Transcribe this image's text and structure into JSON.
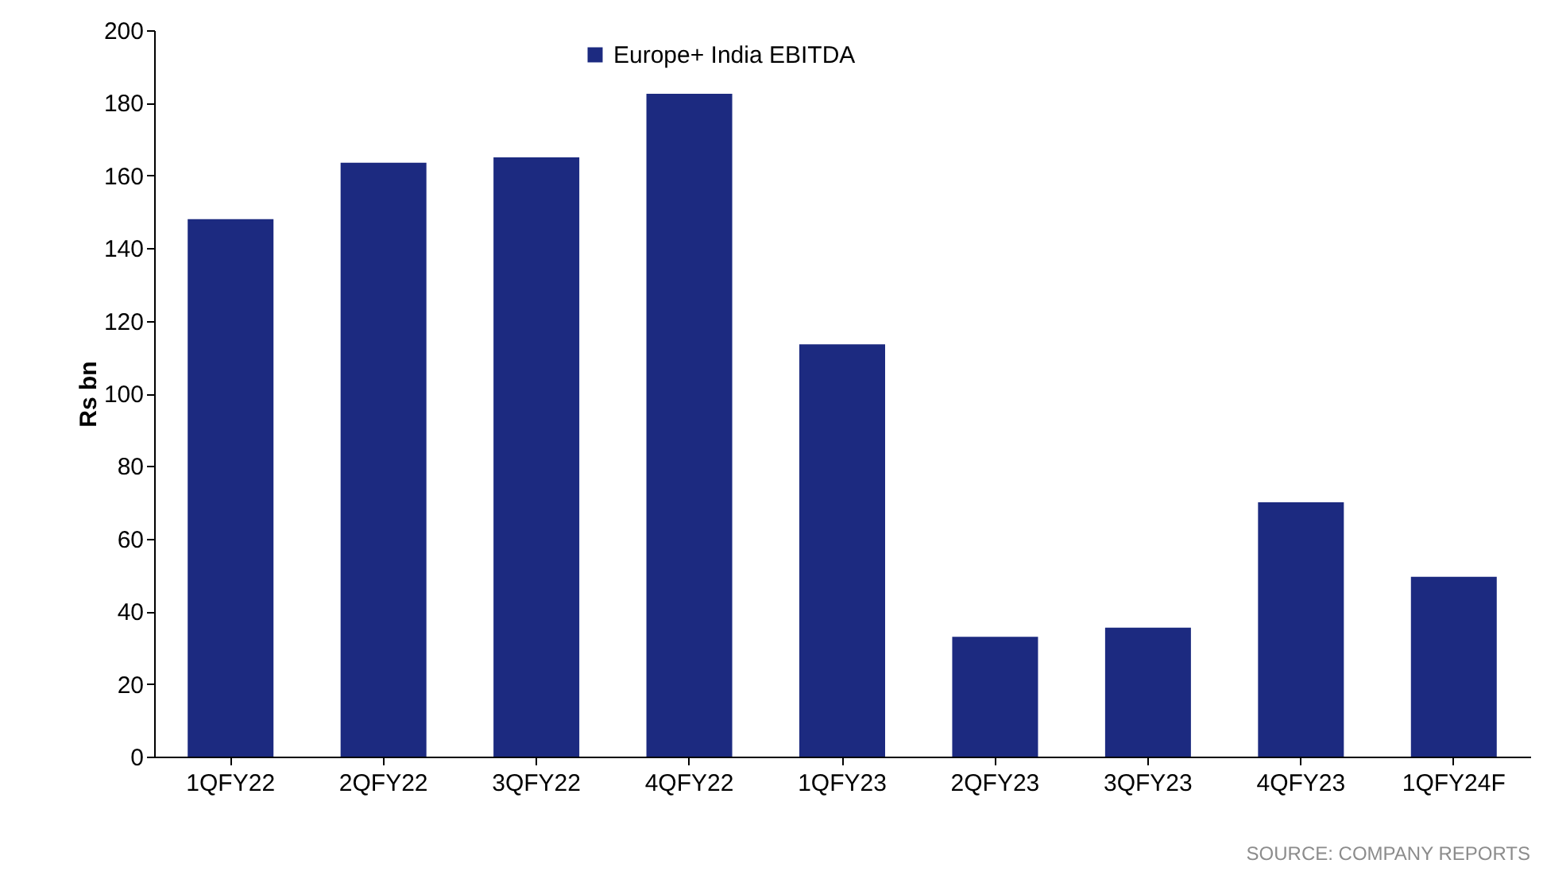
{
  "chart_data": {
    "type": "bar",
    "ylabel": "Rs bn",
    "categories": [
      "1QFY22",
      "2QFY22",
      "3QFY22",
      "4QFY22",
      "1QFY23",
      "2QFY23",
      "3QFY23",
      "4QFY23",
      "1QFY24F"
    ],
    "series": [
      {
        "name": "Europe+ India EBITDA",
        "color": "#1c2a80",
        "values": [
          148,
          163.5,
          165,
          182.5,
          113.5,
          33,
          35.5,
          70,
          49.5
        ]
      }
    ],
    "ylim": [
      0,
      200
    ],
    "yticks": [
      0,
      20,
      40,
      60,
      80,
      100,
      120,
      140,
      160,
      180,
      200
    ],
    "grid": false,
    "legend": "top",
    "annotations": [
      "SOURCE: COMPANY REPORTS"
    ]
  }
}
